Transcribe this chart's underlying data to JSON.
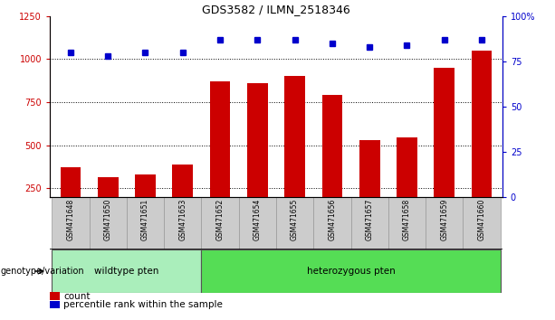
{
  "title": "GDS3582 / ILMN_2518346",
  "samples": [
    "GSM471648",
    "GSM471650",
    "GSM471651",
    "GSM471653",
    "GSM471652",
    "GSM471654",
    "GSM471655",
    "GSM471656",
    "GSM471657",
    "GSM471658",
    "GSM471659",
    "GSM471660"
  ],
  "counts": [
    370,
    315,
    330,
    385,
    870,
    860,
    900,
    790,
    530,
    545,
    950,
    1050
  ],
  "percentiles": [
    80,
    78,
    80,
    80,
    87,
    87,
    87,
    85,
    83,
    84,
    87,
    87
  ],
  "wildtype_count": 4,
  "heterozygous_count": 8,
  "wildtype_label": "wildtype pten",
  "heterozygous_label": "heterozygous pten",
  "genotype_label": "genotype/variation",
  "bar_color": "#cc0000",
  "dot_color": "#0000cc",
  "ylim_left": [
    200,
    1250
  ],
  "ylim_right": [
    0,
    100
  ],
  "yticks_left": [
    250,
    500,
    750,
    1000,
    1250
  ],
  "yticks_right": [
    0,
    25,
    50,
    75,
    100
  ],
  "grid_values": [
    250,
    500,
    750,
    1000
  ],
  "legend_count": "count",
  "legend_percentile": "percentile rank within the sample",
  "wildtype_color": "#aaeebb",
  "heterozygous_color": "#55dd55",
  "sample_box_color": "#cccccc",
  "background_color": "#ffffff"
}
